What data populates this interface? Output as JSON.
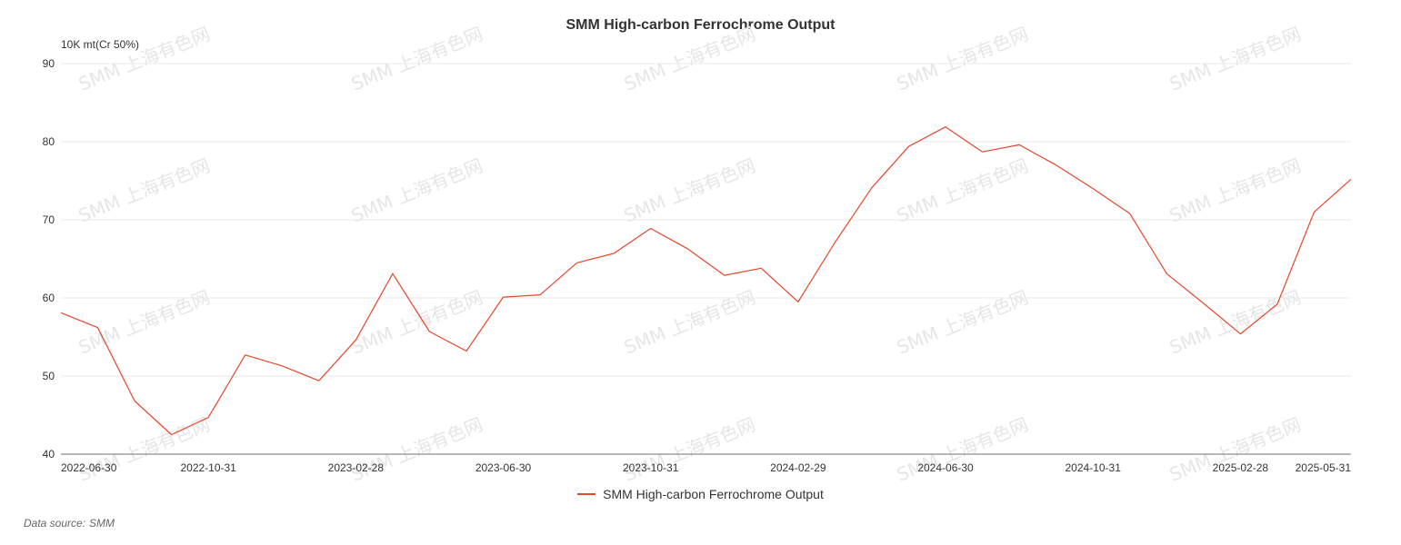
{
  "chart_data": {
    "type": "line",
    "title": "SMM High-carbon Ferrochrome Output",
    "unit_label": "10K mt(Cr 50%)",
    "xlabel": "",
    "ylabel": "",
    "ylim": [
      40,
      90
    ],
    "yticks": [
      40,
      50,
      60,
      70,
      80,
      90
    ],
    "x": [
      "2022-06-30",
      "2022-07-31",
      "2022-08-31",
      "2022-09-30",
      "2022-10-31",
      "2022-11-30",
      "2022-12-31",
      "2023-01-31",
      "2023-02-28",
      "2023-03-31",
      "2023-04-30",
      "2023-05-31",
      "2023-06-30",
      "2023-07-31",
      "2023-08-31",
      "2023-09-30",
      "2023-10-31",
      "2023-11-30",
      "2023-12-31",
      "2024-01-31",
      "2024-02-29",
      "2024-03-31",
      "2024-04-30",
      "2024-05-31",
      "2024-06-30",
      "2024-07-31",
      "2024-08-31",
      "2024-09-30",
      "2024-10-31",
      "2024-11-30",
      "2024-12-31",
      "2025-01-31",
      "2025-02-28",
      "2025-03-31",
      "2025-04-30",
      "2025-05-31"
    ],
    "x_tick_labels": [
      "2022-06-30",
      "2022-10-31",
      "2023-02-28",
      "2023-06-30",
      "2023-10-31",
      "2024-02-29",
      "2024-06-30",
      "2024-10-31",
      "2025-02-28",
      "2025-05-31"
    ],
    "series": [
      {
        "name": "SMM High-carbon Ferrochrome Output",
        "color": "#e5472d",
        "values": [
          58.1,
          56.2,
          46.8,
          42.5,
          44.7,
          52.7,
          51.3,
          49.4,
          54.6,
          63.1,
          55.7,
          53.2,
          60.1,
          60.4,
          64.5,
          65.7,
          68.9,
          66.3,
          62.9,
          63.8,
          59.5,
          67.1,
          74.1,
          79.4,
          81.9,
          78.7,
          79.6,
          77.0,
          74.0,
          70.8,
          63.1,
          59.3,
          55.4,
          59.2,
          71.0,
          75.2
        ]
      }
    ],
    "grid": true,
    "legend_position": "bottom-center"
  },
  "watermark_text": "SMM 上海有色网",
  "footer": {
    "source_label": "Data source:",
    "source_value": "SMM"
  }
}
